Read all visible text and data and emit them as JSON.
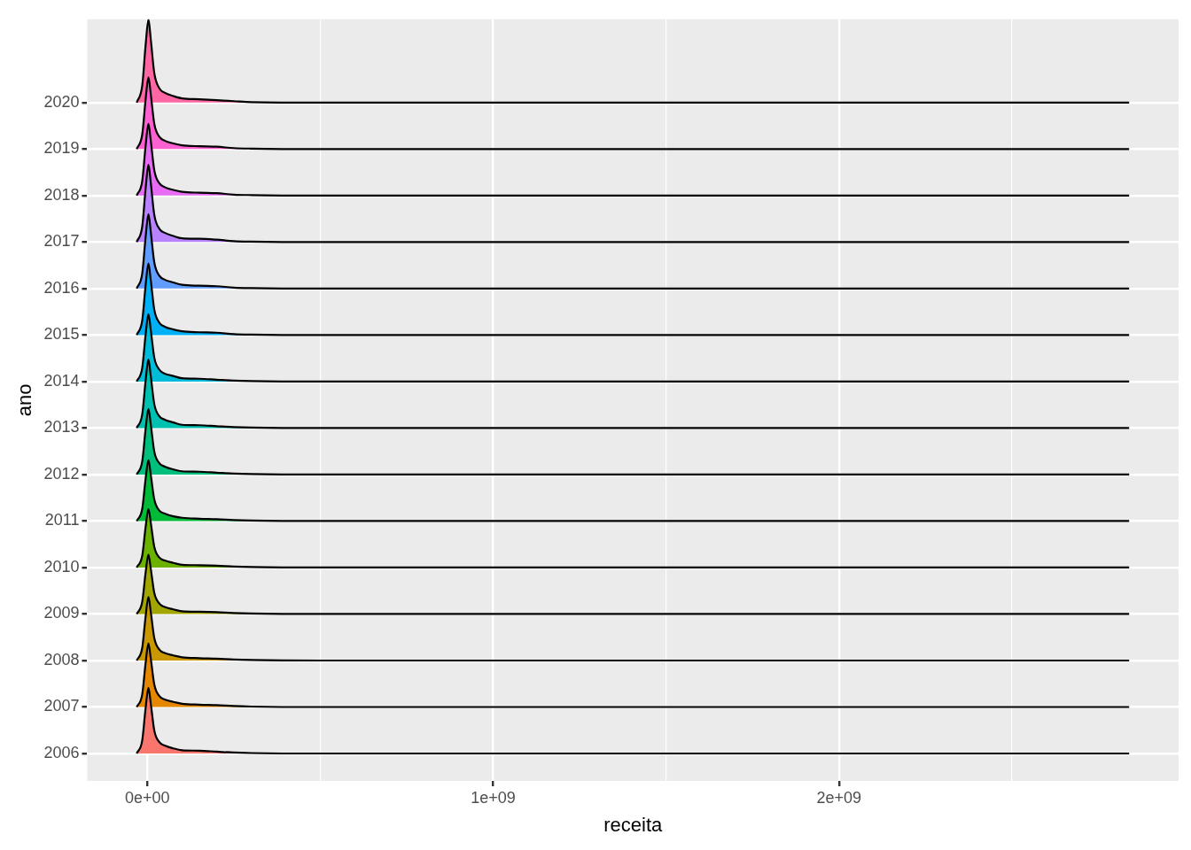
{
  "chart_data": {
    "type": "area",
    "xlabel": "receita",
    "ylabel": "ano",
    "grid": true,
    "x": [
      -31000000,
      -15000000,
      -5000000,
      3000000,
      10000000,
      20000000,
      35000000,
      50000000,
      75000000,
      100000000,
      150000000,
      200000000,
      250000000,
      300000000,
      500000000,
      1000000000,
      1500000000,
      2000000000,
      2839000000
    ],
    "xlim": [
      -174000000,
      2982000000
    ],
    "xticks": [
      {
        "value": 0,
        "label": "0e+00"
      },
      {
        "value": 500000000,
        "label": null
      },
      {
        "value": 1000000000,
        "label": "1e+09"
      },
      {
        "value": 1500000000,
        "label": null
      },
      {
        "value": 2000000000,
        "label": "2e+09"
      },
      {
        "value": 2500000000,
        "label": null
      }
    ],
    "ylim": [
      2005.41,
      2021.79
    ],
    "yticks": [
      2006,
      2007,
      2008,
      2009,
      2010,
      2011,
      2012,
      2013,
      2014,
      2015,
      2016,
      2017,
      2018,
      2019,
      2020
    ],
    "series": [
      {
        "color": "#f8766d",
        "values": [
          2006,
          2006.28,
          2006.99,
          2007.41,
          2007.06,
          2006.49,
          2006.24,
          2006.17,
          2006.11,
          2006.07,
          2006.06,
          2006.04,
          2006.02,
          2006.01,
          2006,
          2006,
          2006,
          2006,
          2006
        ]
      },
      {
        "color": "#e58700",
        "values": [
          2007,
          2007.27,
          2007.96,
          2008.37,
          2008.03,
          2007.48,
          2007.23,
          2007.16,
          2007.11,
          2007.07,
          2007.05,
          2007.04,
          2007.02,
          2007.01,
          2007,
          2007,
          2007,
          2007,
          2007
        ]
      },
      {
        "color": "#c99800",
        "values": [
          2008,
          2008.27,
          2008.96,
          2009.37,
          2009.03,
          2008.48,
          2008.23,
          2008.16,
          2008.11,
          2008.07,
          2008.05,
          2008.04,
          2008.02,
          2008.01,
          2008,
          2008,
          2008,
          2008,
          2008
        ]
      },
      {
        "color": "#a3a500",
        "values": [
          2009,
          2009.26,
          2009.9,
          2010.28,
          2009.96,
          2009.45,
          2009.22,
          2009.15,
          2009.1,
          2009.06,
          2009.05,
          2009.04,
          2009.02,
          2009.01,
          2009,
          2009,
          2009,
          2009,
          2009
        ]
      },
      {
        "color": "#6bb100",
        "values": [
          2010,
          2010.25,
          2010.88,
          2011.26,
          2010.95,
          2010.44,
          2010.21,
          2010.15,
          2010.1,
          2010.06,
          2010.05,
          2010.04,
          2010.02,
          2010.01,
          2010,
          2010,
          2010,
          2010,
          2010
        ]
      },
      {
        "color": "#00ba38",
        "values": [
          2011,
          2011.26,
          2011.92,
          2012.31,
          2011.98,
          2011.46,
          2011.22,
          2011.16,
          2011.1,
          2011.07,
          2011.05,
          2011.04,
          2011.02,
          2011.01,
          2011,
          2011,
          2011,
          2011,
          2011
        ]
      },
      {
        "color": "#00bf7d",
        "values": [
          2012,
          2012.28,
          2012.99,
          2013.41,
          2013.06,
          2012.49,
          2012.24,
          2012.17,
          2012.11,
          2012.07,
          2012.06,
          2012.04,
          2012.02,
          2012.01,
          2012,
          2012,
          2012,
          2012,
          2012
        ]
      },
      {
        "color": "#00c0af",
        "values": [
          2013,
          2013.29,
          2014.03,
          2014.47,
          2014.1,
          2013.51,
          2013.25,
          2013.18,
          2013.12,
          2013.07,
          2013.06,
          2013.04,
          2013.02,
          2013.01,
          2013,
          2013,
          2013,
          2013,
          2013
        ]
      },
      {
        "color": "#00bcd8",
        "values": [
          2014,
          2014.29,
          2015.02,
          2015.45,
          2015.09,
          2014.51,
          2014.25,
          2014.17,
          2014.12,
          2014.07,
          2014.06,
          2014.04,
          2014.02,
          2014.01,
          2014,
          2014,
          2014,
          2014,
          2014
        ]
      },
      {
        "color": "#00b0f6",
        "values": [
          2015,
          2015.31,
          2016.08,
          2016.54,
          2016.16,
          2015.54,
          2015.26,
          2015.18,
          2015.12,
          2015.08,
          2015.06,
          2015.05,
          2015.02,
          2015.01,
          2015,
          2015,
          2015,
          2015,
          2015
        ]
      },
      {
        "color": "#619cff",
        "values": [
          2016,
          2016.32,
          2017.12,
          2017.6,
          2017.2,
          2016.56,
          2016.27,
          2016.19,
          2016.13,
          2016.08,
          2016.06,
          2016.05,
          2016.02,
          2016.01,
          2016,
          2016,
          2016,
          2016,
          2016
        ]
      },
      {
        "color": "#b983ff",
        "values": [
          2017,
          2017.33,
          2018.16,
          2018.66,
          2018.25,
          2017.58,
          2017.28,
          2017.2,
          2017.13,
          2017.08,
          2017.07,
          2017.05,
          2017.02,
          2017.01,
          2017,
          2017,
          2017,
          2017,
          2017
        ]
      },
      {
        "color": "#e76bf3",
        "values": [
          2018,
          2018.31,
          2019.08,
          2019.54,
          2019.16,
          2018.54,
          2018.26,
          2018.18,
          2018.12,
          2018.08,
          2018.06,
          2018.05,
          2018.02,
          2018.01,
          2018,
          2018,
          2018,
          2018,
          2018
        ]
      },
      {
        "color": "#fd61d1",
        "values": [
          2019,
          2019.31,
          2020.08,
          2020.54,
          2020.16,
          2019.54,
          2019.26,
          2019.18,
          2019.12,
          2019.08,
          2019.06,
          2019.05,
          2019.02,
          2019.01,
          2019,
          2019,
          2019,
          2019,
          2019
        ]
      },
      {
        "color": "#ff67a4",
        "values": [
          2020,
          2020.36,
          2021.25,
          2021.79,
          2021.34,
          2020.63,
          2020.3,
          2020.21,
          2020.14,
          2020.09,
          2020.07,
          2020.05,
          2020.03,
          2020.01,
          2020,
          2020,
          2020,
          2020,
          2020
        ]
      }
    ]
  }
}
